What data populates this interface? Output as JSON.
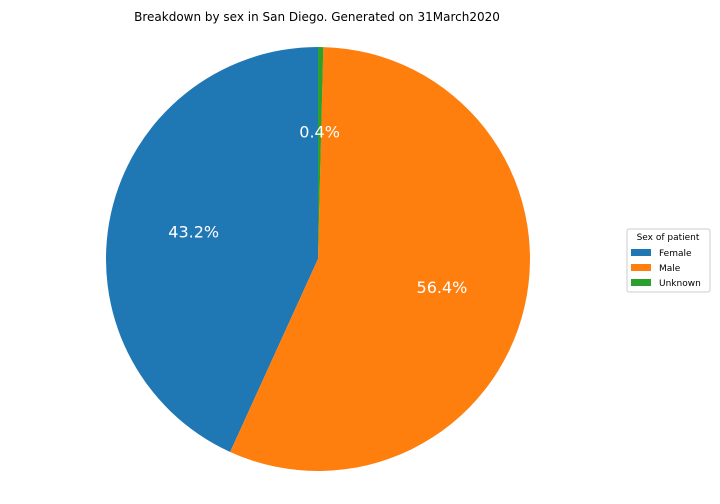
{
  "chart_data": {
    "type": "pie",
    "title": "Breakdown by sex in San Diego. Generated on 31March2020",
    "categories": [
      "Female",
      "Male",
      "Unknown"
    ],
    "values": [
      43.2,
      56.4,
      0.4
    ],
    "labels": [
      "43.2%",
      "56.4%",
      "0.4%"
    ],
    "colors": [
      "#1f77b4",
      "#ff7f0e",
      "#2ca02c"
    ],
    "start_angle_deg": 90,
    "direction": "counterclockwise",
    "legend": {
      "title": "Sex of patient",
      "placement": "right",
      "entries": [
        "Female",
        "Male",
        "Unknown"
      ]
    }
  }
}
